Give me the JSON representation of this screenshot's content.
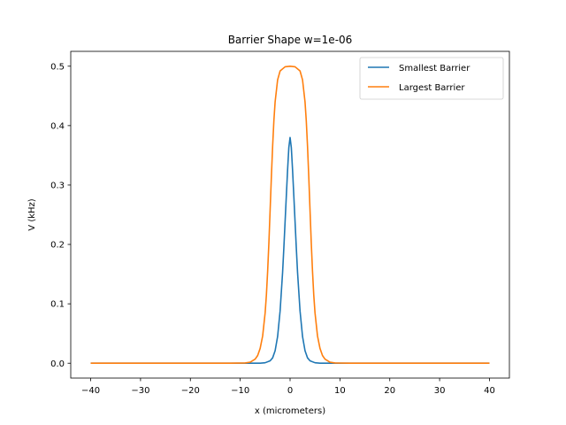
{
  "chart_data": {
    "type": "line",
    "title": "Barrier Shape w=1e-06",
    "xlabel": "x (micrometers)",
    "ylabel": "V (kHz)",
    "xlim": [
      -44,
      44
    ],
    "ylim": [
      -0.025,
      0.525
    ],
    "xticks": [
      -40,
      -30,
      -20,
      -10,
      0,
      10,
      20,
      30,
      40
    ],
    "xtick_labels": [
      "−40",
      "−30",
      "−20",
      "−10",
      "0",
      "10",
      "20",
      "30",
      "40"
    ],
    "yticks": [
      0.0,
      0.1,
      0.2,
      0.3,
      0.4,
      0.5
    ],
    "ytick_labels": [
      "0.0",
      "0.1",
      "0.2",
      "0.3",
      "0.4",
      "0.5"
    ],
    "grid": false,
    "legend": "top-right",
    "series": [
      {
        "name": "Smallest Barrier",
        "color": "#1f77b4",
        "x": [
          -40,
          -10,
          -6,
          -5,
          -4,
          -3.5,
          -3,
          -2.5,
          -2,
          -1.5,
          -1.25,
          -1,
          -0.75,
          -0.5,
          -0.25,
          0,
          0.25,
          0.5,
          0.75,
          1,
          1.25,
          1.5,
          2,
          2.5,
          3,
          3.5,
          4,
          5,
          6,
          10,
          40
        ],
        "y": [
          0,
          0,
          0.0001,
          0.0008,
          0.004,
          0.009,
          0.021,
          0.045,
          0.088,
          0.153,
          0.194,
          0.238,
          0.282,
          0.325,
          0.363,
          0.38,
          0.363,
          0.325,
          0.282,
          0.238,
          0.194,
          0.153,
          0.088,
          0.045,
          0.021,
          0.009,
          0.004,
          0.0008,
          0.0001,
          0,
          0
        ]
      },
      {
        "name": "Largest Barrier",
        "color": "#ff7f0e",
        "x": [
          -40,
          -12,
          -9,
          -8,
          -7,
          -6.5,
          -6,
          -5.5,
          -5,
          -4.75,
          -4.5,
          -4.25,
          -4,
          -3.75,
          -3.5,
          -3.25,
          -3,
          -2.5,
          -2,
          -1,
          0,
          1,
          2,
          2.5,
          3,
          3.25,
          3.5,
          3.75,
          4,
          4.25,
          4.5,
          4.75,
          5,
          5.5,
          6,
          6.5,
          7,
          8,
          9,
          12,
          40
        ],
        "y": [
          0,
          0,
          0.0004,
          0.0018,
          0.007,
          0.013,
          0.025,
          0.046,
          0.085,
          0.115,
          0.155,
          0.203,
          0.258,
          0.314,
          0.365,
          0.408,
          0.44,
          0.477,
          0.492,
          0.499,
          0.5,
          0.499,
          0.492,
          0.477,
          0.44,
          0.408,
          0.365,
          0.314,
          0.258,
          0.203,
          0.155,
          0.115,
          0.085,
          0.046,
          0.025,
          0.013,
          0.007,
          0.0018,
          0.0004,
          0,
          0
        ]
      }
    ]
  }
}
